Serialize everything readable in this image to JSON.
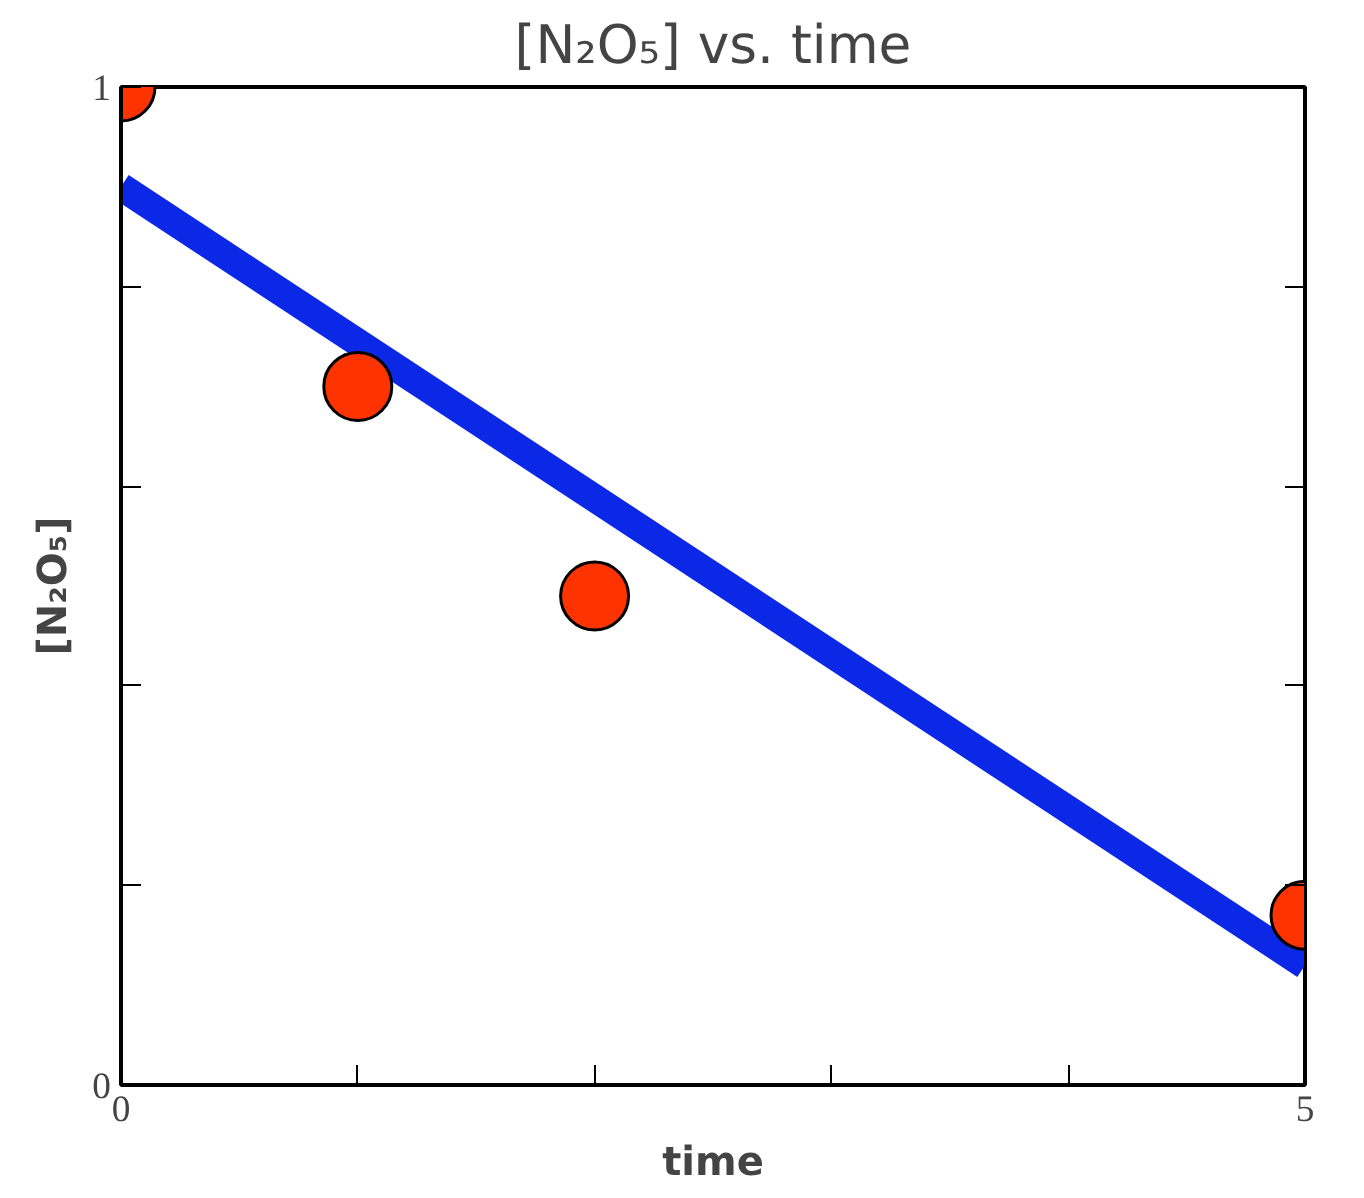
{
  "chart_data": {
    "type": "scatter",
    "title": "[N₂O₅] vs. time",
    "xlabel": "time",
    "ylabel": "[N₂O₅]",
    "xlim": [
      0,
      5
    ],
    "ylim": [
      0,
      1
    ],
    "xticks": [
      0,
      {
        "value": 1,
        "label": null
      },
      {
        "value": 2,
        "label": null
      },
      {
        "value": 3,
        "label": null
      },
      {
        "value": 4,
        "label": null
      },
      5
    ],
    "yticks": [
      0,
      {
        "value": 0.2,
        "label": null
      },
      {
        "value": 0.4,
        "label": null
      },
      {
        "value": 0.6,
        "label": null
      },
      {
        "value": 0.8,
        "label": null
      },
      1
    ],
    "grid": false,
    "series": [
      {
        "type": "line",
        "color": "#0a28e6",
        "x": [
          0,
          5
        ],
        "values": [
          0.9,
          0.12
        ]
      },
      {
        "color": "#ff3300",
        "marker": "circle",
        "x": [
          0,
          1,
          2,
          5
        ],
        "values": [
          1.0,
          0.7,
          0.49,
          0.17
        ]
      }
    ]
  }
}
